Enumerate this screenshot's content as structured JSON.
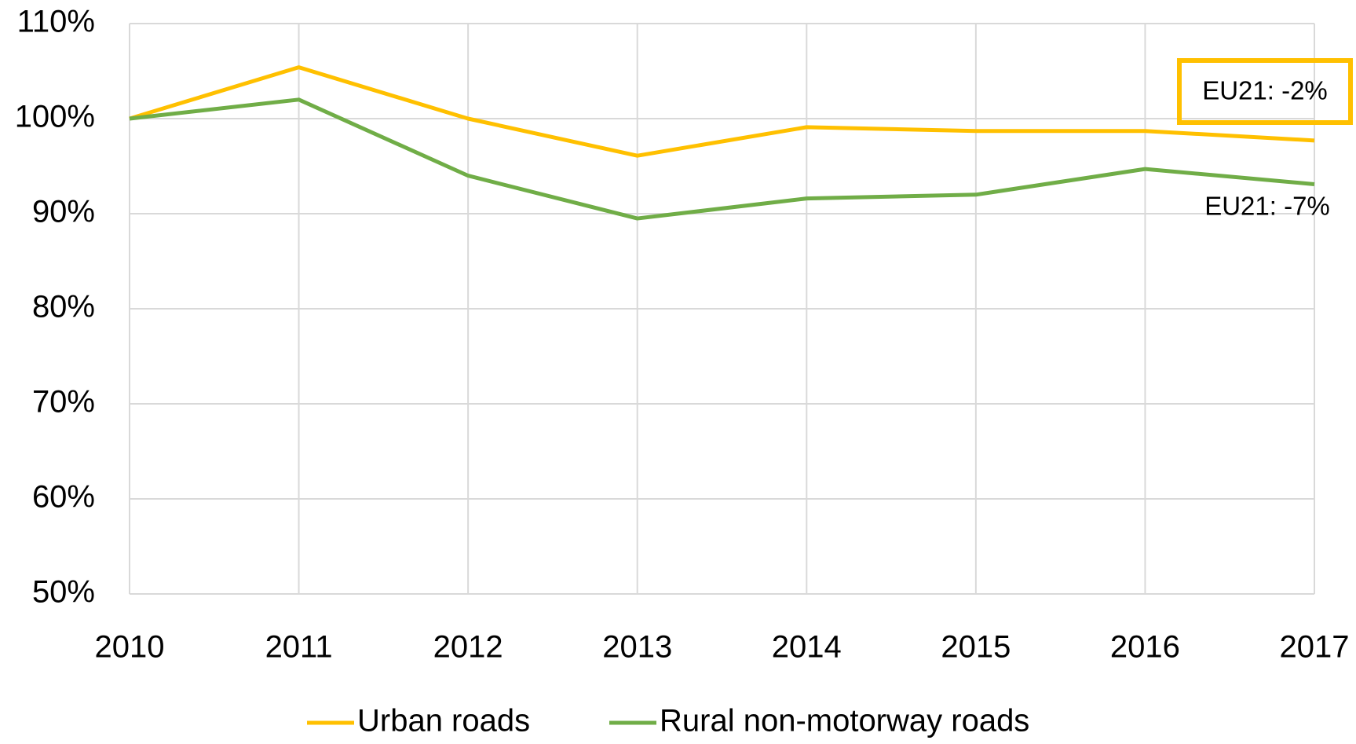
{
  "chart_data": {
    "type": "line",
    "categories": [
      "2010",
      "2011",
      "2012",
      "2013",
      "2014",
      "2015",
      "2016",
      "2017"
    ],
    "series": [
      {
        "name": "Urban roads",
        "color": "#ffc000",
        "values": [
          100,
          105.4,
          100,
          96.1,
          99.1,
          98.7,
          98.7,
          97.7
        ]
      },
      {
        "name": "Rural non-motorway roads",
        "color": "#70ad47",
        "values": [
          100,
          102.0,
          94.0,
          89.5,
          91.6,
          92.0,
          94.7,
          93.1
        ]
      }
    ],
    "ylim": [
      50,
      110
    ],
    "yticks": [
      {
        "value": 50,
        "label": "50%"
      },
      {
        "value": 60,
        "label": "60%"
      },
      {
        "value": 70,
        "label": "70%"
      },
      {
        "value": 80,
        "label": "80%"
      },
      {
        "value": 90,
        "label": "90%"
      },
      {
        "value": 100,
        "label": "100%"
      },
      {
        "value": 110,
        "label": "110%"
      }
    ],
    "grid": true,
    "legend": "bottom",
    "annotations": [
      "EU21: -2%",
      "EU21: -7%"
    ]
  }
}
